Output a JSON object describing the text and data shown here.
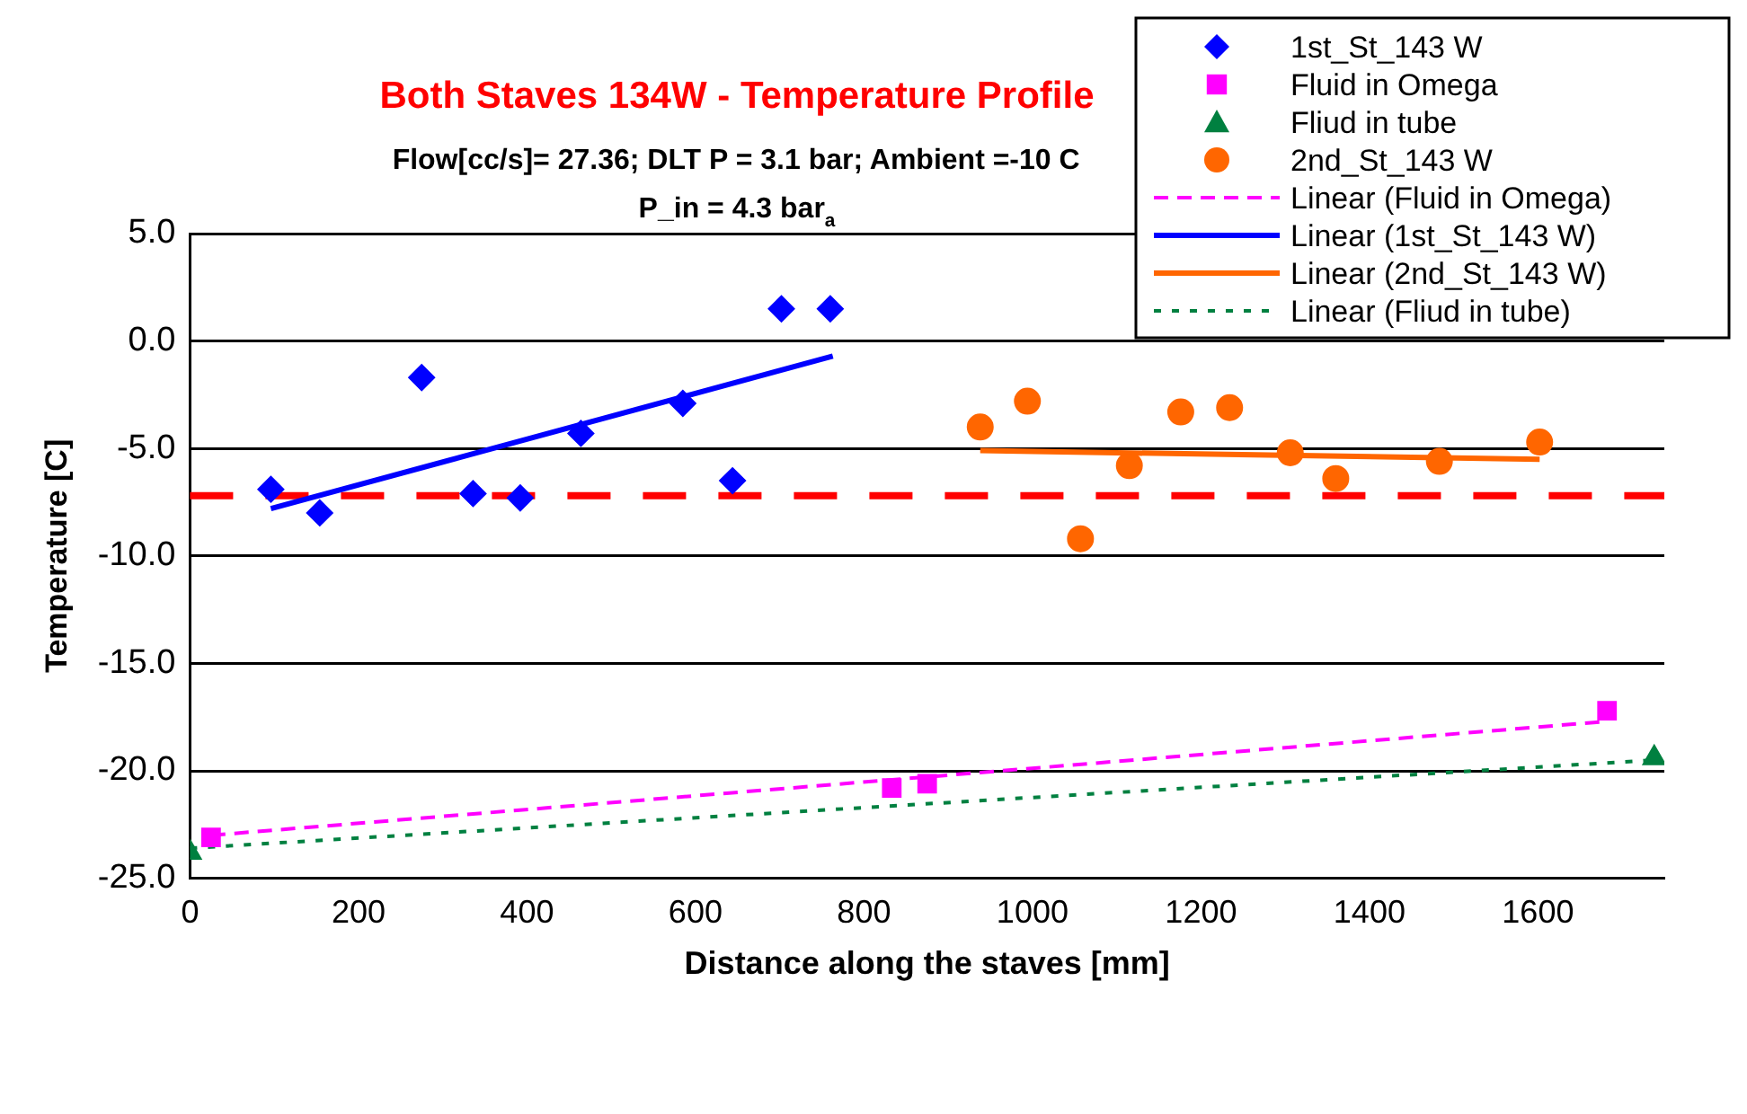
{
  "chart_data": {
    "type": "scatter",
    "title": "Both Staves 134W - Temperature Profile",
    "subtitle": "Flow[cc/s]= 27.36; DLT P = 3.1 bar; Ambient =-10 C\nP_in = 4.3 bar$_{a}$",
    "xlabel": "Distance along the staves [mm]",
    "ylabel": "Temperature [C]",
    "xlim": [
      0,
      1750
    ],
    "xticks": [
      0,
      200,
      400,
      600,
      800,
      1000,
      1200,
      1400,
      1600
    ],
    "ylim": [
      -25,
      5
    ],
    "yticks": [
      {
        "value": -25,
        "label": "-25.0"
      },
      {
        "value": -20,
        "label": "-20.0"
      },
      {
        "value": -15,
        "label": "-15.0"
      },
      {
        "value": -10,
        "label": "-10.0"
      },
      {
        "value": -5,
        "label": "-5.0"
      },
      {
        "value": 0,
        "label": "0.0"
      },
      {
        "value": 5,
        "label": "5.0"
      }
    ],
    "grid": "y",
    "legend": "top right",
    "ref_lines": [
      {
        "axis": "y",
        "value": -7.2,
        "color": "#ff0000",
        "line_style": "dashed"
      }
    ],
    "series": [
      {
        "name": "1st_St_143 W",
        "type": "scatter",
        "marker": "diamond",
        "color": "#0000ff",
        "x": [
          96,
          154,
          275,
          336,
          392,
          464,
          585,
          644,
          702,
          760
        ],
        "values": [
          -6.9,
          -8.0,
          -1.7,
          -7.1,
          -7.3,
          -4.3,
          -2.9,
          -6.5,
          1.5,
          1.5
        ]
      },
      {
        "name": "Fluid in Omega",
        "type": "scatter",
        "marker": "square",
        "color": "#ff00ff",
        "x": [
          25,
          833,
          875,
          1682
        ],
        "values": [
          -23.1,
          -20.8,
          -20.6,
          -17.2
        ]
      },
      {
        "name": "Fliud in tube",
        "type": "scatter",
        "marker": "triangle",
        "color": "#008040",
        "x": [
          0,
          1738
        ],
        "values": [
          -23.8,
          -19.4
        ]
      },
      {
        "name": "2nd_St_143 W",
        "type": "scatter",
        "marker": "circle",
        "color": "#ff6600",
        "x": [
          938,
          994,
          1057,
          1115,
          1176,
          1234,
          1306,
          1360,
          1483,
          1602
        ],
        "values": [
          -4.0,
          -2.8,
          -9.2,
          -5.8,
          -3.3,
          -3.1,
          -5.2,
          -6.4,
          -5.6,
          -4.7
        ]
      },
      {
        "name": "Linear (Fluid in Omega)",
        "type": "line",
        "line_style": "dashed",
        "color": "#ff00ff",
        "x": [
          25,
          1682
        ],
        "values": [
          -23.0,
          -17.7
        ]
      },
      {
        "name": "Linear (1st_St_143 W)",
        "type": "line",
        "line_style": "solid",
        "color": "#0000ff",
        "x": [
          96,
          763
        ],
        "values": [
          -7.8,
          -0.7
        ]
      },
      {
        "name": "Linear (2nd_St_143 W)",
        "type": "line",
        "line_style": "solid",
        "color": "#ff6600",
        "x": [
          938,
          1602
        ],
        "values": [
          -5.1,
          -5.5
        ]
      },
      {
        "name": "Linear (Fliud in tube)",
        "type": "line",
        "line_style": "dotted",
        "color": "#008040",
        "x": [
          0,
          1738
        ],
        "values": [
          -23.6,
          -19.5
        ]
      }
    ]
  }
}
